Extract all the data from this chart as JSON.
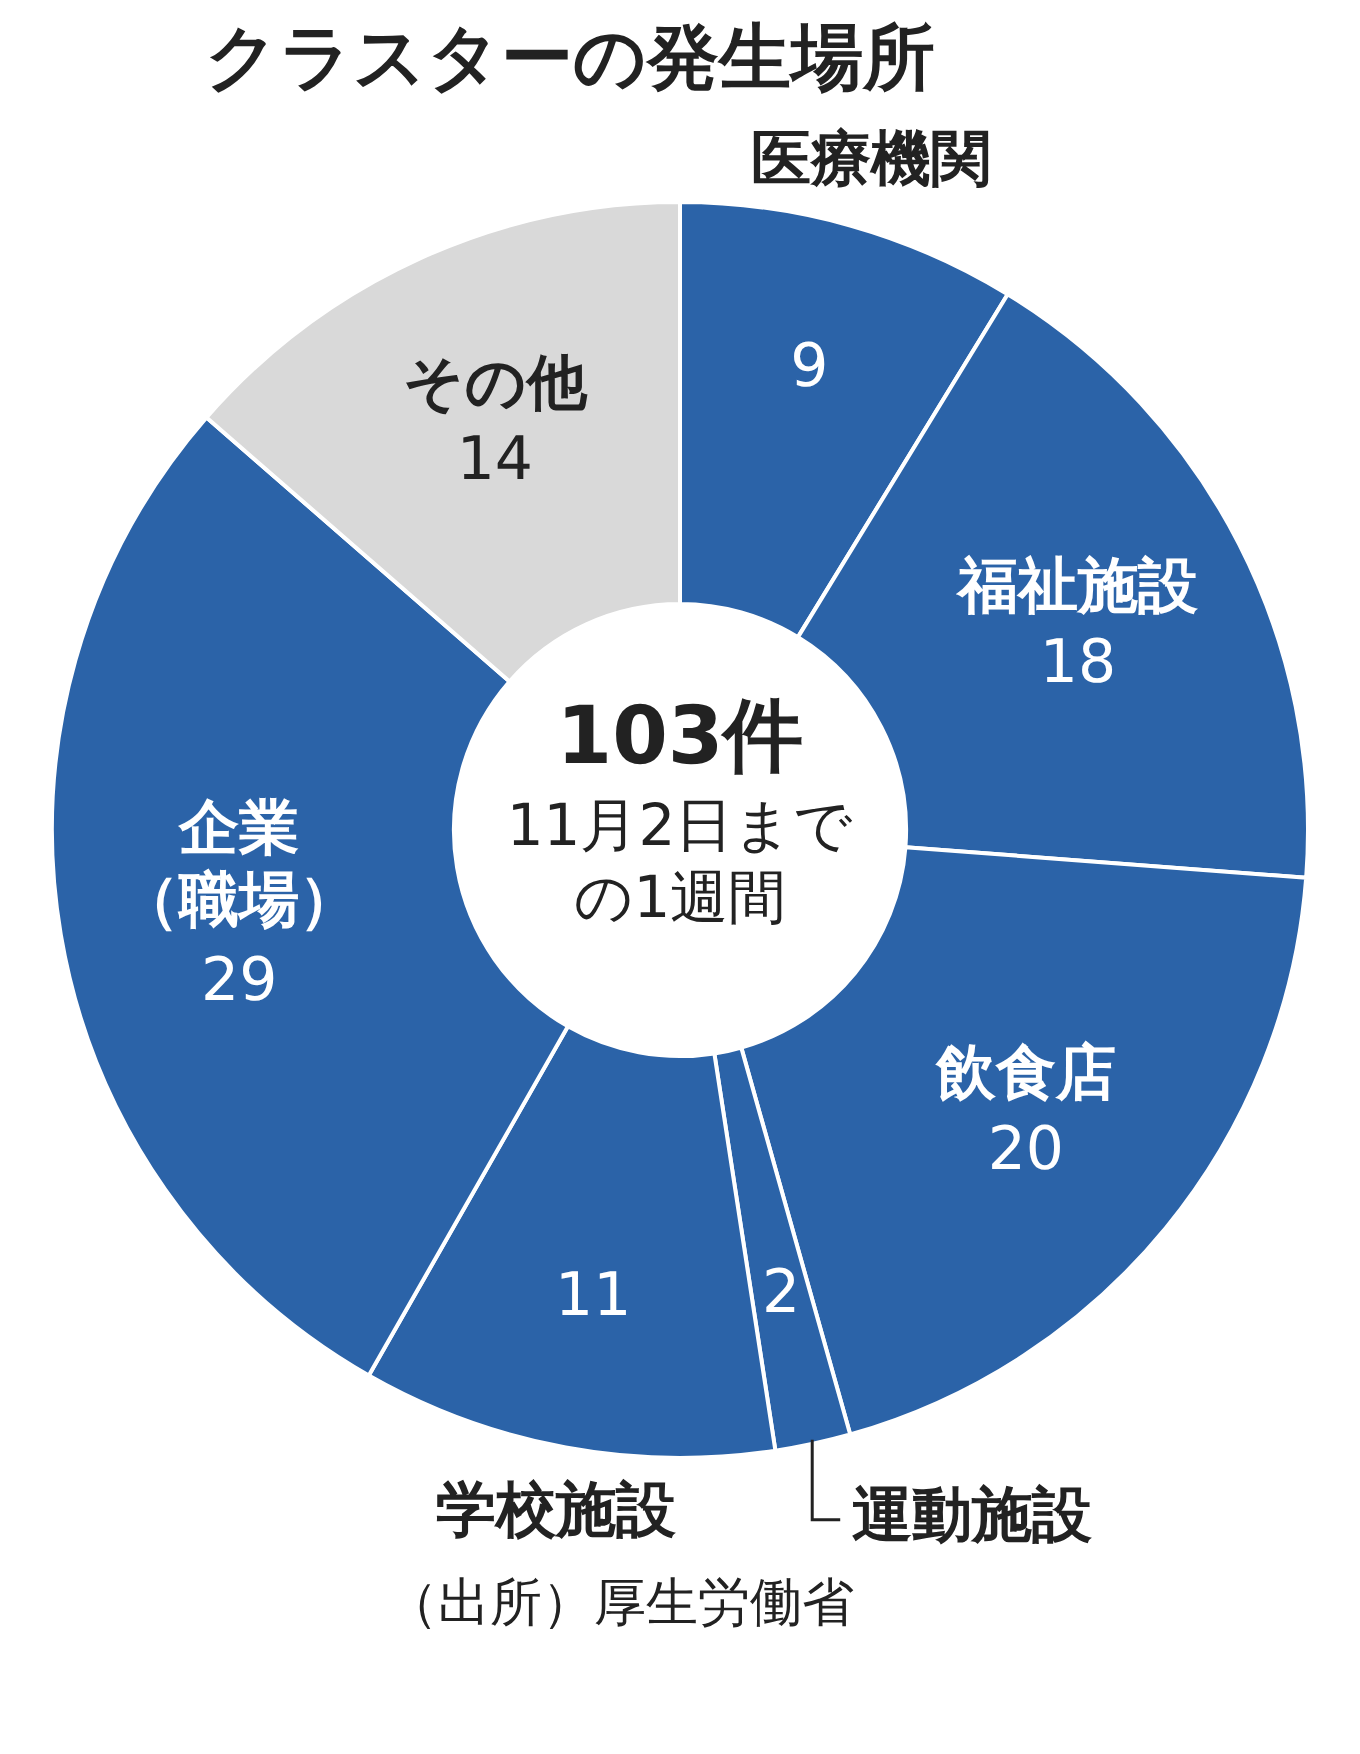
{
  "chart_data": {
    "type": "donut",
    "title": "クラスターの発生場所",
    "categories": [
      "医療機関",
      "福祉施設",
      "飲食店",
      "運動施設",
      "学校施設",
      "企業（職場）",
      "その他"
    ],
    "values": [
      9,
      18,
      20,
      2,
      11,
      29,
      14
    ],
    "colors": [
      "#2b63a8",
      "#2b63a8",
      "#2b63a8",
      "#2b63a8",
      "#2b63a8",
      "#2b63a8",
      "#d9d9d9"
    ],
    "data_labels": true,
    "legend": false,
    "annotations": [
      "103件",
      "11月2日までの1週間",
      "（出所）厚生労働省"
    ]
  }
}
